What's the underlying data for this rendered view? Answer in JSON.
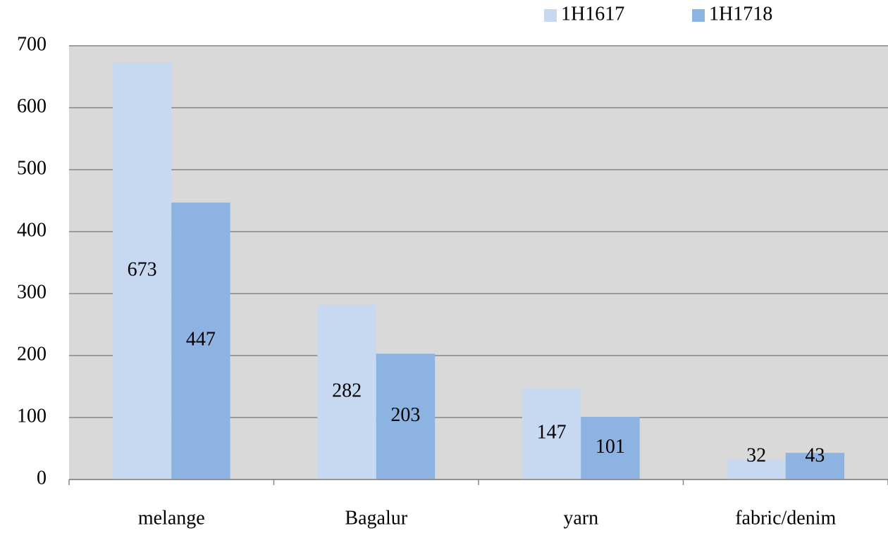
{
  "chart_data": {
    "type": "bar",
    "categories": [
      "melange",
      "Bagalur",
      "yarn",
      "fabric/denim"
    ],
    "series": [
      {
        "name": "1H1617",
        "color": "#c6d9f1",
        "values": [
          673,
          282,
          147,
          32
        ]
      },
      {
        "name": "1H1718",
        "color": "#8db3e2",
        "values": [
          447,
          203,
          101,
          43
        ]
      }
    ],
    "ylim": [
      0,
      700
    ],
    "yticks": [
      0,
      100,
      200,
      300,
      400,
      500,
      600,
      700
    ],
    "grid": true,
    "legend": "top-right"
  }
}
